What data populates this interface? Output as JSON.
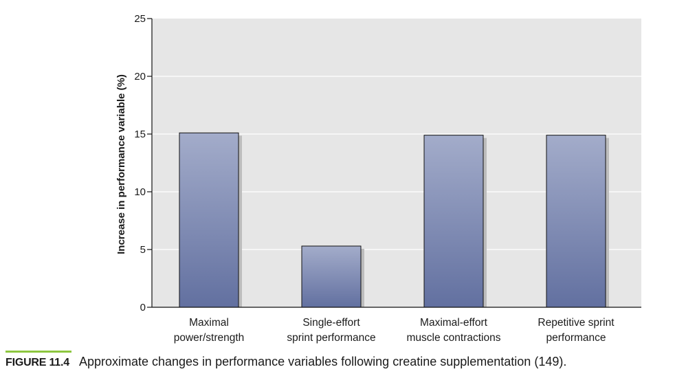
{
  "chart_data": {
    "type": "bar",
    "categories": [
      [
        "Maximal",
        "power/strength"
      ],
      [
        "Single-effort",
        "sprint performance"
      ],
      [
        "Maximal-effort",
        "muscle contractions"
      ],
      [
        "Repetitive sprint",
        "performance"
      ]
    ],
    "values": [
      15.1,
      5.3,
      14.9,
      14.9
    ],
    "title": "",
    "xlabel": "",
    "ylabel": "Increase in performance variable (%)",
    "ylim": [
      0,
      25
    ],
    "yticks": [
      0,
      5,
      10,
      15,
      20,
      25
    ],
    "grid": true,
    "colors": {
      "plot_background": "#e6e6e6",
      "bar_top": "#a3acca",
      "bar_bottom": "#6270a0",
      "bar_shadow": "#bdbdbd",
      "gridline": "#ffffff"
    }
  },
  "caption": {
    "label": "FIGURE 11.4",
    "text": "Approximate changes in performance variables following creatine supplementation (149).",
    "rule_color": "#8dc63f"
  }
}
